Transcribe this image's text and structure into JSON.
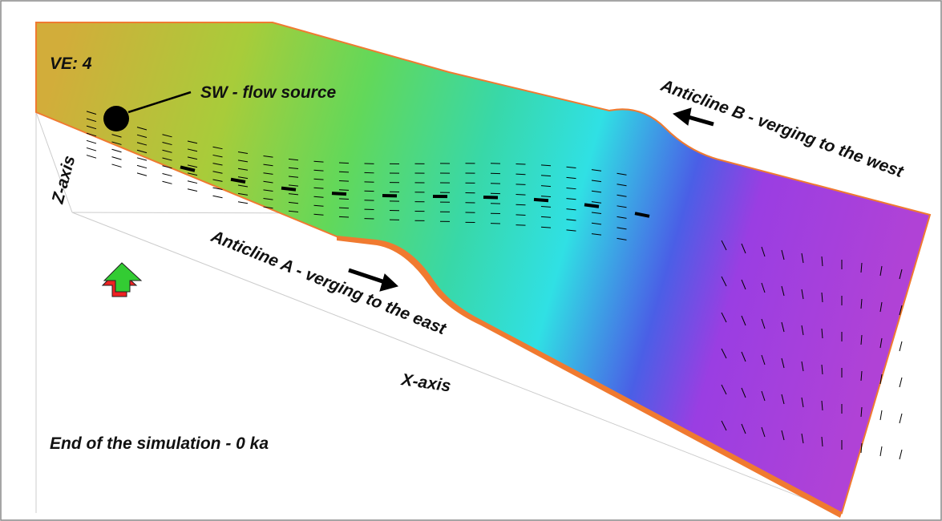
{
  "view": {
    "vertical_exaggeration": "VE: 4",
    "flow_source": "SW - flow source",
    "anticline_b": "Anticline B - verging to the west",
    "anticline_a": "Anticline A - verging to the east",
    "z_axis": "Z-axis",
    "x_axis": "X-axis",
    "status": "End of the simulation - 0 ka"
  }
}
